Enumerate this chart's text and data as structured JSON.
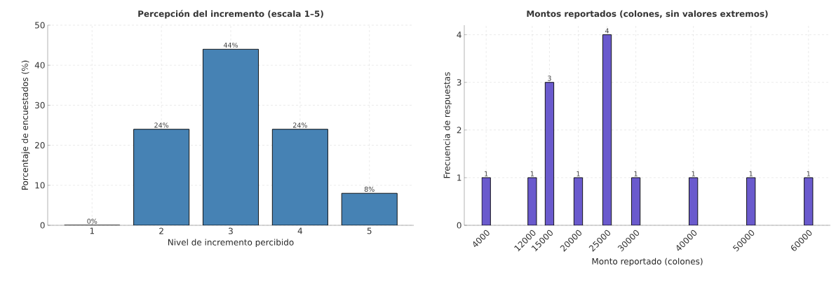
{
  "chart_data": [
    {
      "type": "bar",
      "title": "Percepción del incremento (escala 1–5)",
      "xlabel": "Nivel de incremento percibido",
      "ylabel": "Porcentaje de encuestados (%)",
      "categories": [
        "1",
        "2",
        "3",
        "4",
        "5"
      ],
      "values": [
        0,
        24,
        44,
        24,
        8
      ],
      "value_labels": [
        "0%",
        "24%",
        "44%",
        "24%",
        "8%"
      ],
      "color": "#4682b4",
      "ylim": [
        0,
        50
      ],
      "yticks": [
        0,
        10,
        20,
        30,
        40,
        50
      ],
      "grid": true
    },
    {
      "type": "bar",
      "title": "Montos reportados (colones, sin valores extremos)",
      "xlabel": "Monto reportado (colones)",
      "ylabel": "Frecuencia de respuestas",
      "x": [
        4000,
        12000,
        15000,
        20000,
        25000,
        30000,
        40000,
        50000,
        60000
      ],
      "values": [
        1,
        1,
        3,
        1,
        4,
        1,
        1,
        1,
        1
      ],
      "data_labels": true,
      "color": "#6a5acd",
      "xlim": [
        200,
        63800
      ],
      "xticks": [
        4000,
        12000,
        15000,
        20000,
        25000,
        30000,
        40000,
        50000,
        60000
      ],
      "ylim": [
        0,
        4.2
      ],
      "yticks": [
        0,
        1,
        2,
        3,
        4
      ],
      "grid": true
    }
  ]
}
